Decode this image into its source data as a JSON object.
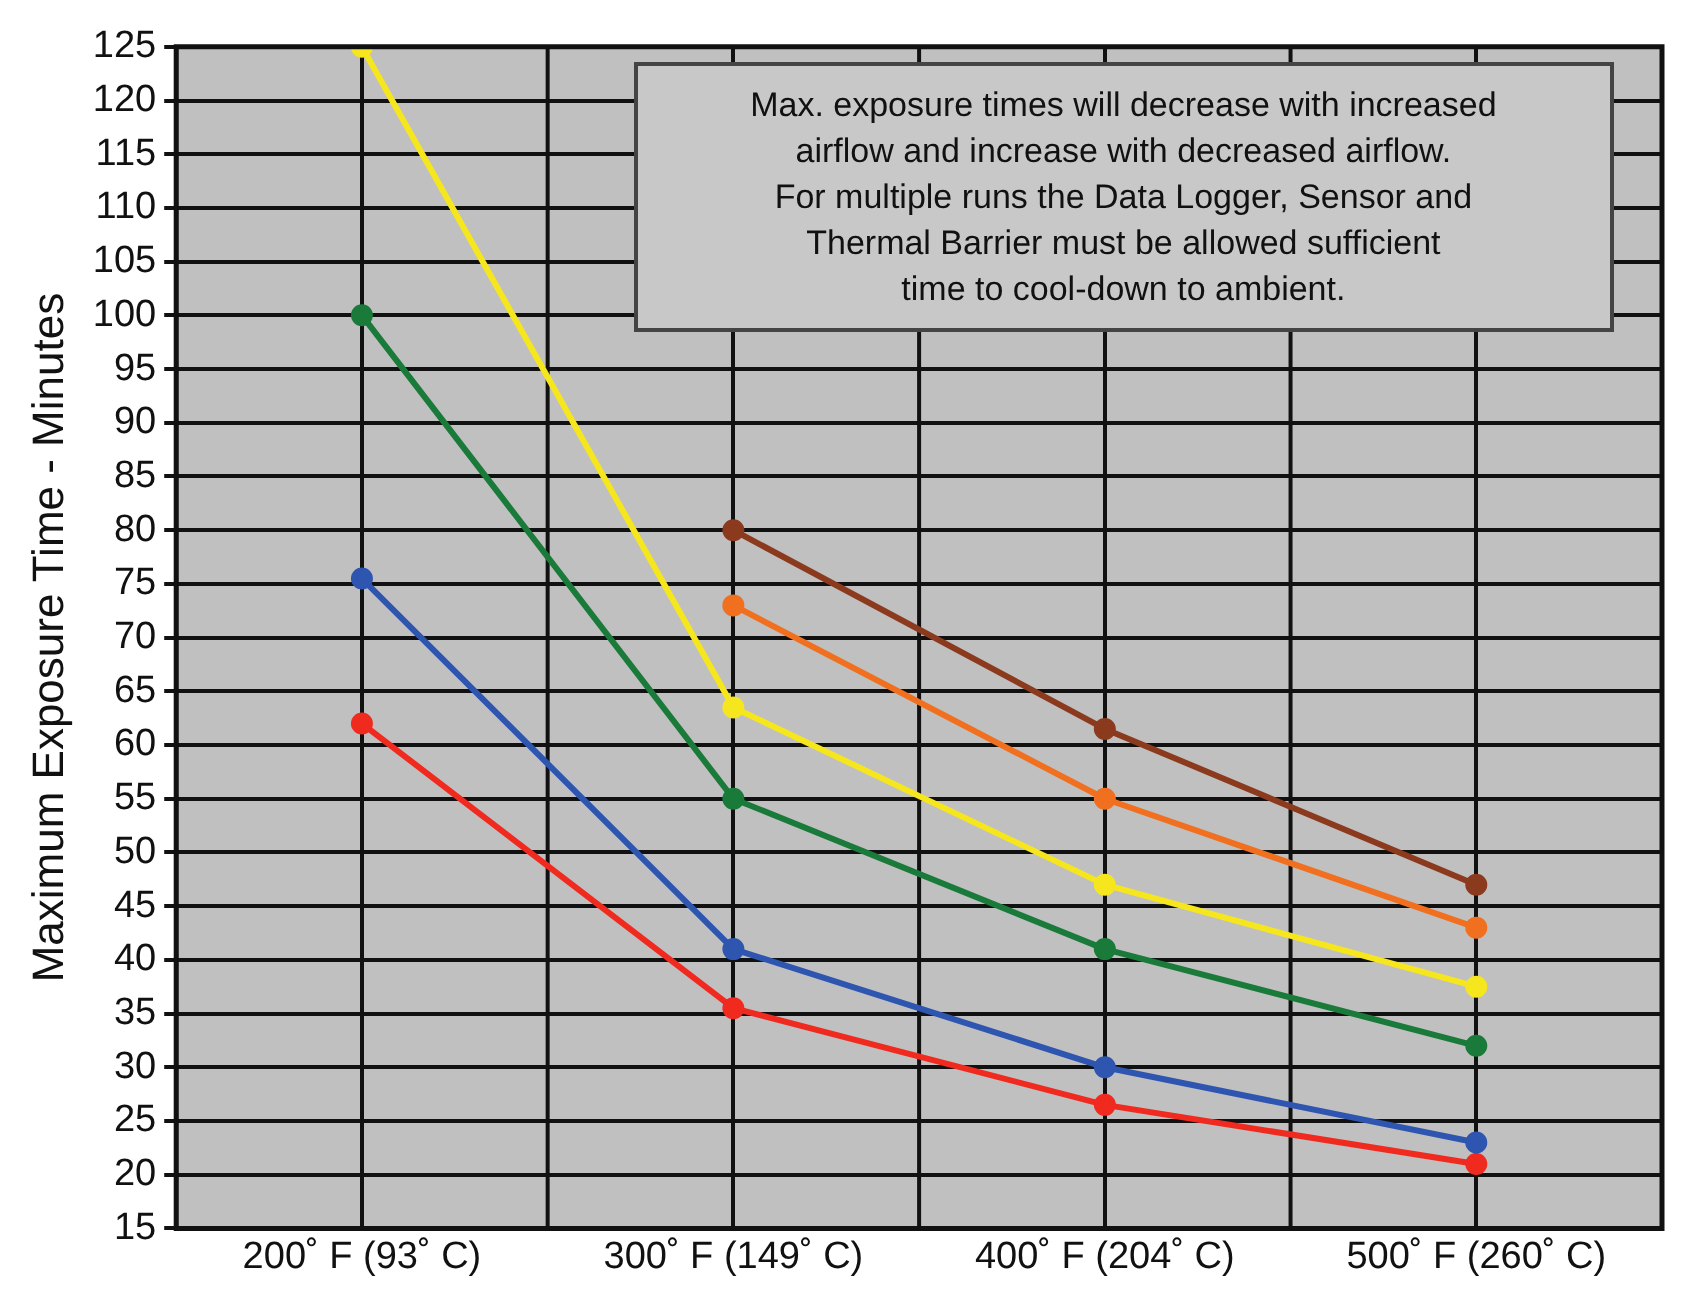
{
  "chart_data": {
    "type": "line",
    "ylabel": "Maximum Exposure Time - Minutes",
    "categories": [
      "200˚ F (93˚ C)",
      "300˚ F (149˚ C)",
      "400˚ F (204˚ C)",
      "500˚ F (260˚ C)"
    ],
    "series": [
      {
        "color": "#8b3a1e",
        "values": [
          null,
          80,
          61.5,
          47
        ]
      },
      {
        "color": "#f07020",
        "values": [
          null,
          73,
          55,
          43
        ]
      },
      {
        "color": "#f5e61e",
        "values": [
          125,
          63.5,
          47,
          37.5
        ]
      },
      {
        "color": "#1a7a3a",
        "values": [
          100,
          55,
          41,
          32
        ]
      },
      {
        "color": "#2e56b0",
        "values": [
          75.5,
          41,
          30,
          23
        ]
      },
      {
        "color": "#f02a1e",
        "values": [
          62,
          35.5,
          26.5,
          21
        ]
      }
    ],
    "ylim": [
      15,
      125
    ],
    "yticks": [
      15,
      20,
      25,
      30,
      35,
      40,
      45,
      50,
      55,
      60,
      65,
      70,
      75,
      80,
      85,
      90,
      95,
      100,
      105,
      110,
      115,
      120,
      125
    ],
    "grid": true,
    "marker": "circle",
    "line_style": "solid",
    "legend": false,
    "annotations": [
      "Max. exposure times will decrease with increased\nairflow and increase with decreased airflow.\nFor multiple runs the Data Logger, Sensor and\nThermal Barrier must be allowed sufficient\ntime to cool-down to ambient."
    ]
  }
}
